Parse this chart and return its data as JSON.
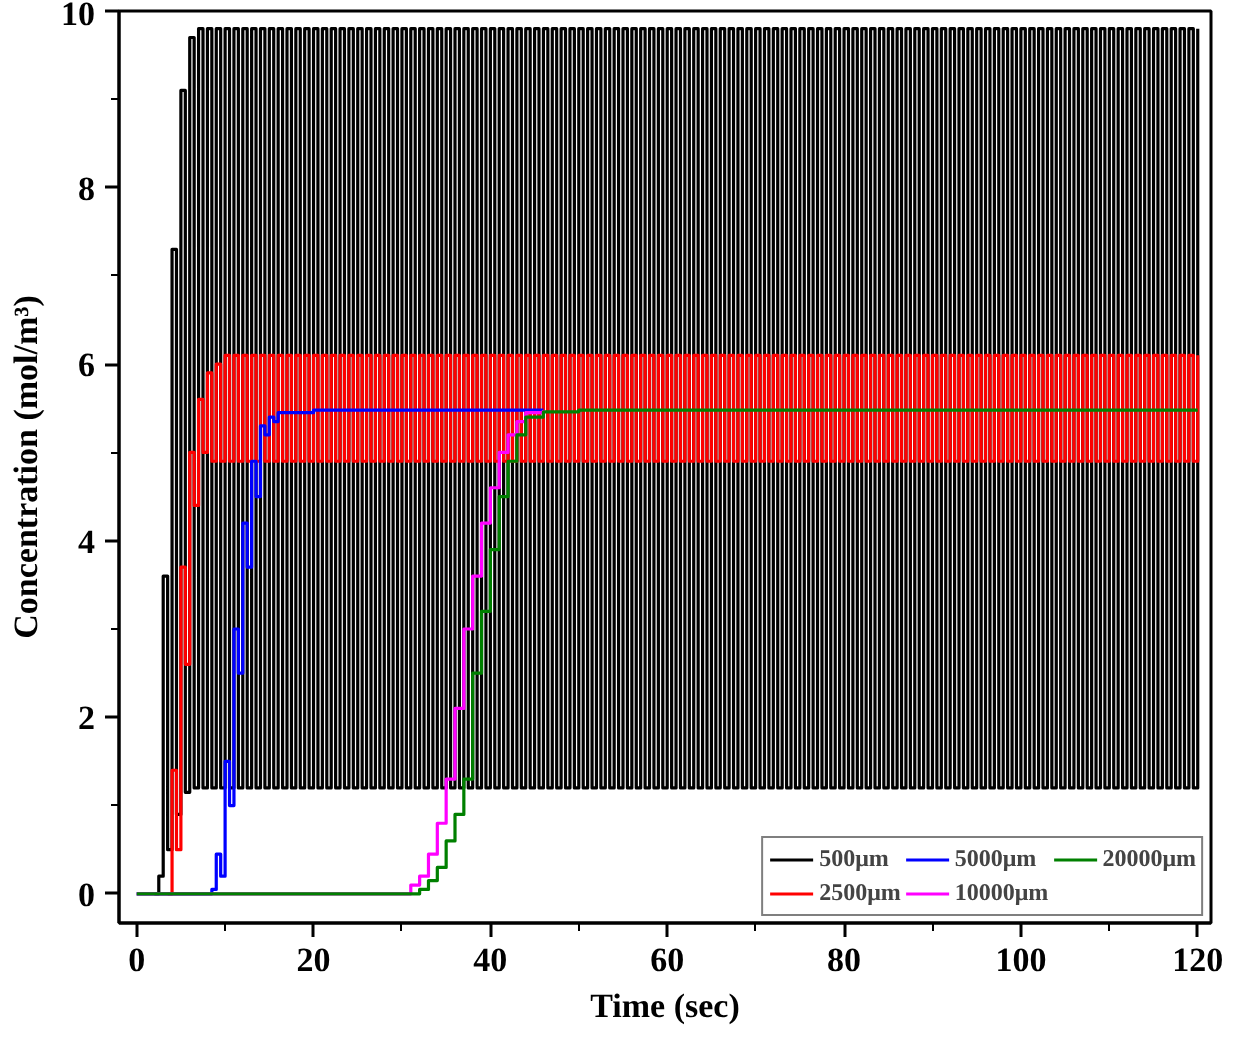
{
  "chart_data": {
    "type": "step",
    "xlabel": "Time (sec)",
    "ylabel": "Concentration (mol/m³)",
    "xlim": [
      -2,
      121.5
    ],
    "ylim": [
      -0.33,
      10
    ],
    "xticks": [
      0,
      20,
      40,
      60,
      80,
      100,
      120
    ],
    "yticks": [
      0,
      2,
      4,
      6,
      8,
      10
    ],
    "legend": "bottom right",
    "line_style": "solid",
    "x": [
      2,
      2.5,
      3,
      3.5,
      4,
      4.5,
      5,
      5.5,
      6,
      6.5,
      7,
      7.5,
      8,
      8.5,
      9,
      9.5,
      10,
      10.5,
      11,
      11.5,
      12,
      12.5,
      13,
      13.5,
      14,
      14.5,
      15,
      15.5,
      16,
      16.5,
      17,
      17.5,
      18,
      18.5,
      19,
      19.5,
      20,
      20.5,
      21,
      21.5,
      22,
      22.5,
      23,
      23.5,
      24,
      24.5,
      25,
      25.5,
      26,
      26.5,
      27,
      27.5,
      28,
      28.5,
      29,
      29.5,
      30,
      30.5,
      31,
      31.5,
      32,
      32.5,
      33,
      33.5,
      34,
      34.5,
      35,
      35.5,
      36,
      36.5,
      37,
      37.5,
      38,
      38.5,
      39,
      39.5,
      40,
      40.5,
      41,
      41.5,
      42,
      42.5,
      43,
      43.5,
      44,
      44.5,
      45,
      45.5,
      46,
      46.5,
      47,
      47.5,
      48,
      48.5,
      49,
      49.5,
      50,
      50.5,
      51,
      51.5,
      52,
      52.5,
      53,
      53.5,
      54,
      54.5,
      55,
      55.5,
      56,
      56.5,
      57,
      57.5,
      58,
      58.5,
      59,
      59.5,
      60,
      60.5,
      61,
      61.5,
      62,
      62.5,
      63,
      63.5,
      64,
      64.5,
      65,
      65.5,
      66,
      66.5,
      67,
      67.5,
      68,
      68.5,
      69,
      69.5,
      70,
      70.5,
      71,
      71.5,
      72,
      72.5,
      73,
      73.5,
      74,
      74.5,
      75,
      75.5,
      76,
      76.5,
      77,
      77.5,
      78,
      78.5,
      79,
      79.5,
      80,
      80.5,
      81,
      81.5,
      82,
      82.5,
      83,
      83.5,
      84,
      84.5,
      85,
      85.5,
      86,
      86.5,
      87,
      87.5,
      88,
      88.5,
      89,
      89.5,
      90,
      90.5,
      91,
      91.5,
      92,
      92.5,
      93,
      93.5,
      94,
      94.5,
      95,
      95.5,
      96,
      96.5,
      97,
      97.5,
      98,
      98.5,
      99,
      99.5,
      100,
      100.5,
      101,
      101.5,
      102,
      102.5,
      103,
      103.5,
      104,
      104.5,
      105,
      105.5,
      106,
      106.5,
      107,
      107.5,
      108,
      108.5,
      109,
      109.5,
      110,
      110.5,
      111,
      111.5,
      112,
      112.5,
      113,
      113.5,
      114,
      114.5,
      115,
      115.5,
      116,
      116.5,
      117,
      117.5,
      118,
      118.5,
      119,
      119.5,
      120
    ],
    "series": [
      {
        "name": "500μm",
        "color": "#000000",
        "values": [
          0,
          0.2,
          3.6,
          0.5,
          7.3,
          0.9,
          9.1,
          1.15,
          9.7,
          1.2,
          9.8,
          1.2,
          9.8,
          1.2,
          9.8,
          1.2,
          9.8,
          1.2,
          9.8,
          1.2,
          9.8,
          1.2,
          9.8,
          1.2,
          9.8,
          1.2,
          9.8,
          1.2,
          9.8,
          1.2,
          9.8,
          1.2,
          9.8,
          1.2,
          9.8,
          1.2,
          9.8,
          1.2,
          9.8,
          1.2,
          9.8,
          1.2,
          9.8,
          1.2,
          9.8,
          1.2,
          9.8,
          1.2,
          9.8,
          1.2,
          9.8,
          1.2,
          9.8,
          1.2,
          9.8,
          1.2,
          9.8,
          1.2,
          9.8,
          1.2,
          9.8,
          1.2,
          9.8,
          1.2,
          9.8,
          1.2,
          9.8,
          1.2,
          9.8,
          1.2,
          9.8,
          1.2,
          9.8,
          1.2,
          9.8,
          1.2,
          9.8,
          1.2,
          9.8,
          1.2,
          9.8,
          1.2,
          9.8,
          1.2,
          9.8,
          1.2,
          9.8,
          1.2,
          9.8,
          1.2,
          9.8,
          1.2,
          9.8,
          1.2,
          9.8,
          1.2,
          9.8,
          1.2,
          9.8,
          1.2,
          9.8,
          1.2,
          9.8,
          1.2,
          9.8,
          1.2,
          9.8,
          1.2,
          9.8,
          1.2,
          9.8,
          1.2,
          9.8,
          1.2,
          9.8,
          1.2,
          9.8,
          1.2,
          9.8,
          1.2,
          9.8,
          1.2,
          9.8,
          1.2,
          9.8,
          1.2,
          9.8,
          1.2,
          9.8,
          1.2,
          9.8,
          1.2,
          9.8,
          1.2,
          9.8,
          1.2,
          9.8,
          1.2,
          9.8,
          1.2,
          9.8,
          1.2,
          9.8,
          1.2,
          9.8,
          1.2,
          9.8,
          1.2,
          9.8,
          1.2,
          9.8,
          1.2,
          9.8,
          1.2,
          9.8,
          1.2,
          9.8,
          1.2,
          9.8,
          1.2,
          9.8,
          1.2,
          9.8,
          1.2,
          9.8,
          1.2,
          9.8,
          1.2,
          9.8,
          1.2,
          9.8,
          1.2,
          9.8,
          1.2,
          9.8,
          1.2,
          9.8,
          1.2,
          9.8,
          1.2,
          9.8,
          1.2,
          9.8,
          1.2,
          9.8,
          1.2,
          9.8,
          1.2,
          9.8,
          1.2,
          9.8,
          1.2,
          9.8,
          1.2,
          9.8,
          1.2,
          9.8,
          1.2,
          9.8,
          1.2,
          9.8,
          1.2,
          9.8,
          1.2,
          9.8,
          1.2,
          9.8,
          1.2,
          9.8,
          1.2,
          9.8,
          1.2,
          9.8,
          1.2,
          9.8,
          1.2,
          9.8,
          1.2,
          9.8,
          1.2,
          9.8,
          1.2,
          9.8,
          1.2,
          9.8,
          1.2,
          9.8,
          1.2,
          9.8,
          1.2,
          9.8,
          1.2,
          9.8,
          1.2,
          9.8,
          1.2,
          9.8
        ]
      },
      {
        "name": "2500μm",
        "color": "#ff0000",
        "values": [
          null,
          null,
          null,
          0,
          1.4,
          0.5,
          3.7,
          2.6,
          5.0,
          4.4,
          5.6,
          5.0,
          5.9,
          4.9,
          6.0,
          4.9,
          6.1,
          4.9,
          6.1,
          4.9,
          6.1,
          4.9,
          6.1,
          4.9,
          6.1,
          4.9,
          6.1,
          4.9,
          6.1,
          4.9,
          6.1,
          4.9,
          6.1,
          4.9,
          6.1,
          4.9,
          6.1,
          4.9,
          6.1,
          4.9,
          6.1,
          4.9,
          6.1,
          4.9,
          6.1,
          4.9,
          6.1,
          4.9,
          6.1,
          4.9,
          6.1,
          4.9,
          6.1,
          4.9,
          6.1,
          4.9,
          6.1,
          4.9,
          6.1,
          4.9,
          6.1,
          4.9,
          6.1,
          4.9,
          6.1,
          4.9,
          6.1,
          4.9,
          6.1,
          4.9,
          6.1,
          4.9,
          6.1,
          4.9,
          6.1,
          4.9,
          6.1,
          4.9,
          6.1,
          4.9,
          6.1,
          4.9,
          6.1,
          4.9,
          6.1,
          4.9,
          6.1,
          4.9,
          6.1,
          4.9,
          6.1,
          4.9,
          6.1,
          4.9,
          6.1,
          4.9,
          6.1,
          4.9,
          6.1,
          4.9,
          6.1,
          4.9,
          6.1,
          4.9,
          6.1,
          4.9,
          6.1,
          4.9,
          6.1,
          4.9,
          6.1,
          4.9,
          6.1,
          4.9,
          6.1,
          4.9,
          6.1,
          4.9,
          6.1,
          4.9,
          6.1,
          4.9,
          6.1,
          4.9,
          6.1,
          4.9,
          6.1,
          4.9,
          6.1,
          4.9,
          6.1,
          4.9,
          6.1,
          4.9,
          6.1,
          4.9,
          6.1,
          4.9,
          6.1,
          4.9,
          6.1,
          4.9,
          6.1,
          4.9,
          6.1,
          4.9,
          6.1,
          4.9,
          6.1,
          4.9,
          6.1,
          4.9,
          6.1,
          4.9,
          6.1,
          4.9,
          6.1,
          4.9,
          6.1,
          4.9,
          6.1,
          4.9,
          6.1,
          4.9,
          6.1,
          4.9,
          6.1,
          4.9,
          6.1,
          4.9,
          6.1,
          4.9,
          6.1,
          4.9,
          6.1,
          4.9,
          6.1,
          4.9,
          6.1,
          4.9,
          6.1,
          4.9,
          6.1,
          4.9,
          6.1,
          4.9,
          6.1,
          4.9,
          6.1,
          4.9,
          6.1,
          4.9,
          6.1,
          4.9,
          6.1,
          4.9,
          6.1,
          4.9,
          6.1,
          4.9,
          6.1,
          4.9,
          6.1,
          4.9,
          6.1,
          4.9,
          6.1,
          4.9,
          6.1,
          4.9,
          6.1,
          4.9,
          6.1,
          4.9,
          6.1,
          4.9,
          6.1,
          4.9,
          6.1,
          4.9,
          6.1,
          4.9,
          6.1,
          4.9,
          6.1,
          4.9,
          6.1,
          4.9,
          6.1,
          4.9,
          6.1,
          4.9,
          6.1,
          4.9,
          6.1,
          4.9,
          6.1
        ]
      },
      {
        "name": "5000μm",
        "color": "#0000ff",
        "x": [
          0,
          8,
          8.5,
          9,
          9.5,
          10,
          10.5,
          11,
          11.5,
          12,
          12.5,
          13,
          13.5,
          14,
          14.5,
          15,
          15.5,
          16,
          20,
          46
        ],
        "values": [
          0,
          0,
          0.05,
          0.45,
          0.2,
          1.5,
          1.0,
          3.0,
          2.5,
          4.2,
          3.7,
          4.9,
          4.5,
          5.3,
          5.2,
          5.4,
          5.35,
          5.45,
          5.48,
          5.48
        ]
      },
      {
        "name": "10000μm",
        "color": "#ff00ff",
        "x": [
          0,
          29,
          31,
          32,
          33,
          34,
          35,
          36,
          37,
          38,
          39,
          40,
          41,
          42,
          43,
          44,
          46
        ],
        "values": [
          0,
          0,
          0.1,
          0.2,
          0.45,
          0.8,
          1.3,
          2.1,
          3.0,
          3.6,
          4.2,
          4.6,
          5.0,
          5.2,
          5.35,
          5.45,
          5.48
        ]
      },
      {
        "name": "20000μm",
        "color": "#008000",
        "x": [
          0,
          31,
          32,
          33,
          34,
          35,
          36,
          37,
          38,
          39,
          40,
          41,
          42,
          43,
          44,
          46,
          50,
          120
        ],
        "values": [
          0,
          0,
          0.05,
          0.15,
          0.3,
          0.6,
          0.9,
          1.3,
          2.5,
          3.2,
          3.9,
          4.5,
          4.9,
          5.2,
          5.4,
          5.46,
          5.48,
          5.48
        ]
      }
    ]
  }
}
